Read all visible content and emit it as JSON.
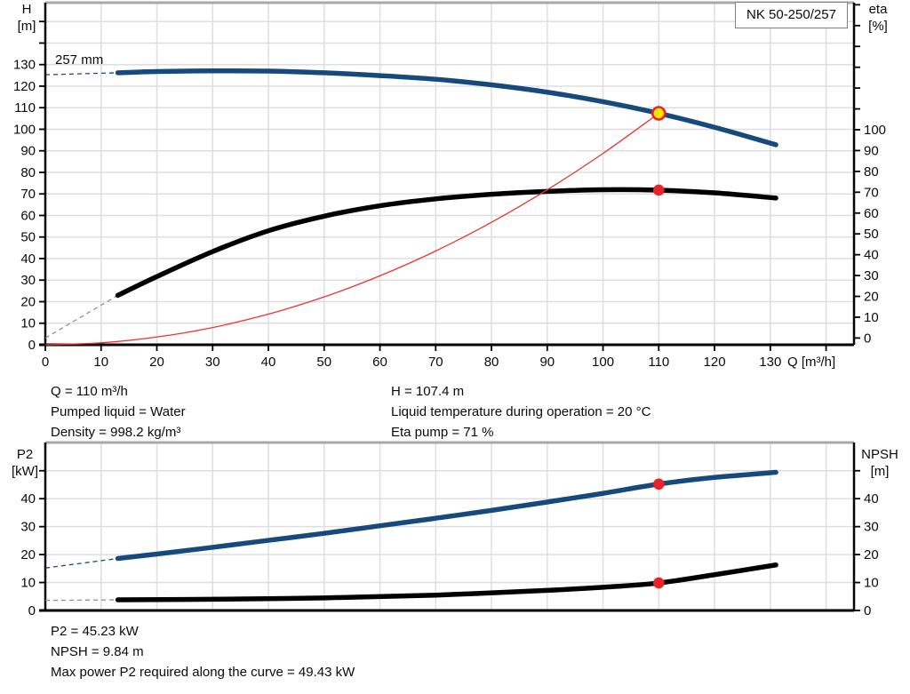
{
  "pump": {
    "type_label": "NK 50-250/257",
    "impeller_label": "257 mm"
  },
  "colors": {
    "curve_blue": "#174a7c",
    "curve_black": "#000000",
    "duty_line_red": "#ee3333",
    "marker_red": "#e8232a",
    "duty_fill_yellow": "#ffe400",
    "dash_gray": "#8c9196",
    "grid": "#dcdee1",
    "axis": "#000000",
    "frame_top": "#a8a8a8",
    "text": "#0a0a0a"
  },
  "info_top": {
    "col1": [
      "Q = 110 m³/h",
      "Pumped liquid = Water",
      "Density = 998.2 kg/m³"
    ],
    "col2": [
      "H = 107.4 m",
      "Liquid temperature during operation = 20 °C",
      "Eta pump = 71 %"
    ]
  },
  "info_bottom": {
    "lines": [
      "P2 = 45.23 kW",
      "NPSH = 9.84 m",
      "Max power P2 required along the curve = 49.43 kW"
    ]
  },
  "chart_data": [
    {
      "type": "line",
      "title": "Pump curve: head and efficiency vs flow",
      "xlabel": "Q [m³/h]",
      "xlim": [
        0,
        145
      ],
      "grid": true,
      "x_ticks": [
        0,
        10,
        20,
        30,
        40,
        50,
        60,
        70,
        80,
        90,
        100,
        110,
        120,
        130
      ],
      "left_axis": {
        "label": [
          "H",
          "[m]"
        ],
        "unit": "m",
        "ticks": [
          0,
          10,
          20,
          30,
          40,
          50,
          60,
          70,
          80,
          90,
          100,
          110,
          120,
          130
        ]
      },
      "right_axis": {
        "label": [
          "eta",
          "[%]"
        ],
        "unit": "%",
        "ticks": [
          0,
          10,
          20,
          30,
          40,
          50,
          60,
          70,
          80,
          90,
          100
        ]
      },
      "series": [
        {
          "name": "head-curve",
          "axis": "left",
          "style": "blue-thick",
          "dashed_lead": [
            [
              0,
              125.3
            ],
            [
              13,
              126.2
            ]
          ],
          "points": [
            [
              13,
              126.2
            ],
            [
              20,
              126.8
            ],
            [
              30,
              127.1
            ],
            [
              40,
              127.0
            ],
            [
              50,
              126.2
            ],
            [
              60,
              124.9
            ],
            [
              70,
              123.2
            ],
            [
              80,
              120.6
            ],
            [
              90,
              117.2
            ],
            [
              100,
              112.8
            ],
            [
              110,
              107.4
            ],
            [
              120,
              100.9
            ],
            [
              131,
              92.8
            ]
          ]
        },
        {
          "name": "efficiency-curve",
          "axis": "right",
          "style": "black-thick",
          "dashed_lead": [
            [
              0,
              0
            ],
            [
              13,
              20.5
            ]
          ],
          "points": [
            [
              13,
              20.5
            ],
            [
              20,
              29.5
            ],
            [
              30,
              41.5
            ],
            [
              40,
              51.5
            ],
            [
              50,
              58.5
            ],
            [
              60,
              63.5
            ],
            [
              70,
              66.8
            ],
            [
              80,
              69.0
            ],
            [
              90,
              70.4
            ],
            [
              100,
              71.2
            ],
            [
              110,
              71.0
            ],
            [
              120,
              69.7
            ],
            [
              131,
              67.2
            ]
          ]
        },
        {
          "name": "duty-line",
          "axis": "left",
          "style": "red-thin",
          "points": [
            [
              0,
              0
            ],
            [
              10,
              0.9
            ],
            [
              20,
              3.6
            ],
            [
              30,
              8.0
            ],
            [
              40,
              14.2
            ],
            [
              50,
              22.2
            ],
            [
              60,
              32.0
            ],
            [
              70,
              43.5
            ],
            [
              80,
              56.8
            ],
            [
              90,
              71.9
            ],
            [
              100,
              88.8
            ],
            [
              110,
              107.4
            ]
          ]
        }
      ],
      "markers": [
        {
          "name": "duty-point",
          "q": 110,
          "value": 107.4,
          "axis": "left",
          "kind": "duty"
        },
        {
          "name": "efficiency-point",
          "q": 110,
          "value": 71,
          "axis": "right",
          "kind": "dot"
        }
      ]
    },
    {
      "type": "line",
      "title": "Power P2 and NPSH vs flow",
      "xlabel": "",
      "xlim": [
        0,
        145
      ],
      "grid": true,
      "x_ticks": [],
      "left_axis": {
        "label": [
          "P2",
          "[kW]"
        ],
        "unit": "kW",
        "ticks": [
          0,
          10,
          20,
          30,
          40
        ]
      },
      "right_axis": {
        "label": [
          "NPSH",
          "[m]"
        ],
        "unit": "m",
        "ticks": [
          0,
          10,
          20,
          30,
          40
        ]
      },
      "series": [
        {
          "name": "p2-curve",
          "axis": "left",
          "style": "blue-thick",
          "dashed_lead": [
            [
              0,
              15.2
            ],
            [
              13,
              18.6
            ]
          ],
          "points": [
            [
              13,
              18.6
            ],
            [
              20,
              20.2
            ],
            [
              30,
              22.6
            ],
            [
              40,
              25.1
            ],
            [
              50,
              27.6
            ],
            [
              60,
              30.3
            ],
            [
              70,
              33.0
            ],
            [
              80,
              35.8
            ],
            [
              90,
              38.8
            ],
            [
              100,
              41.9
            ],
            [
              110,
              45.23
            ],
            [
              120,
              47.6
            ],
            [
              131,
              49.43
            ]
          ]
        },
        {
          "name": "npsh-curve",
          "axis": "right",
          "style": "black-thick",
          "dashed_lead": [
            [
              0,
              3.6
            ],
            [
              13,
              3.8
            ]
          ],
          "points": [
            [
              13,
              3.8
            ],
            [
              30,
              4.0
            ],
            [
              50,
              4.5
            ],
            [
              70,
              5.5
            ],
            [
              90,
              7.2
            ],
            [
              100,
              8.3
            ],
            [
              110,
              9.84
            ],
            [
              120,
              12.8
            ],
            [
              131,
              16.3
            ]
          ]
        }
      ],
      "markers": [
        {
          "name": "p2-point",
          "q": 110,
          "value": 45.23,
          "axis": "left",
          "kind": "dot"
        },
        {
          "name": "npsh-point",
          "q": 110,
          "value": 9.84,
          "axis": "right",
          "kind": "dot"
        }
      ]
    }
  ]
}
